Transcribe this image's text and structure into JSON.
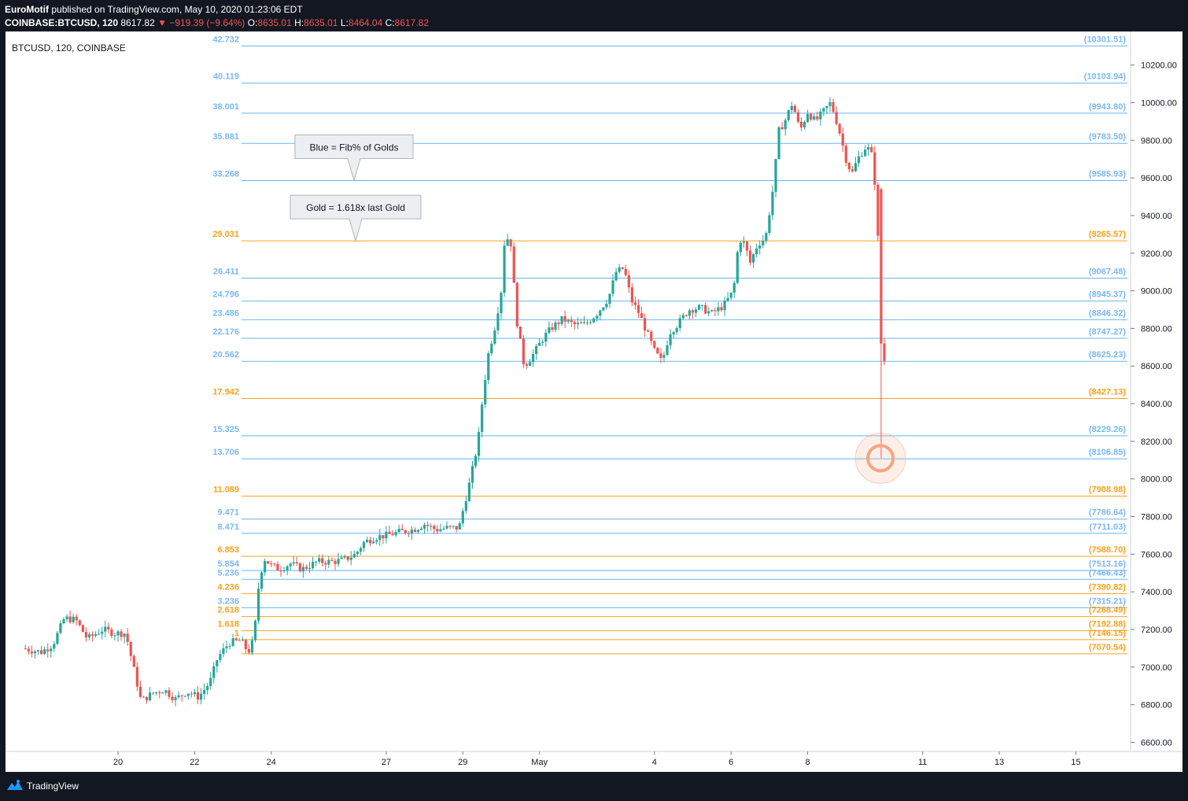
{
  "header": {
    "author": "EuroMotif",
    "published_text": "published on TradingView.com, May 10, 2020 01:23:06 EDT",
    "symbol": "COINBASE:BTCUSD, 120",
    "last_price": "8617.82",
    "change": "▼ −919.39 (−9.64%)",
    "o_label": "O:",
    "o_value": "8635.01",
    "h_label": "H:",
    "h_value": "8635.01",
    "l_label": "L:",
    "l_value": "8464.04",
    "c_label": "C:",
    "c_value": "8617.82"
  },
  "chart_label": "BTCUSD, 120, COINBASE",
  "footer": {
    "brand": "TradingView"
  },
  "colors": {
    "background": "#131722",
    "up": "#26a69a",
    "down": "#ef5350",
    "gold": "#f7a21b",
    "blue": "#64b5f6",
    "blue_text": "#7ab8f5",
    "circle": "#f4a582"
  },
  "chart_data": {
    "type": "candlestick",
    "y_axis": {
      "min": 6560,
      "max": 10370,
      "ticks": [
        6600,
        6800,
        7000,
        7200,
        7400,
        7600,
        7800,
        8000,
        8200,
        8400,
        8600,
        8800,
        9000,
        9200,
        9400,
        9600,
        9800,
        10000,
        10200
      ]
    },
    "x_axis": {
      "range_days": [
        17.5,
        16.3
      ],
      "ticks": [
        {
          "day": 20,
          "label": "20"
        },
        {
          "day": 22,
          "label": "22"
        },
        {
          "day": 24,
          "label": "24"
        },
        {
          "day": 27,
          "label": "27"
        },
        {
          "day": 29,
          "label": "29"
        },
        {
          "day": 31,
          "label": "May"
        },
        {
          "day": 34,
          "label": "4"
        },
        {
          "day": 36,
          "label": "6"
        },
        {
          "day": 38,
          "label": "8"
        },
        {
          "day": 41,
          "label": "11"
        },
        {
          "day": 43,
          "label": "13"
        },
        {
          "day": 45,
          "label": "15"
        }
      ]
    },
    "fib_levels": [
      {
        "ratio": "42.732",
        "price": "(10301.51)",
        "value": 10301.51,
        "color": "blue"
      },
      {
        "ratio": "40.119",
        "price": "(10103.94)",
        "value": 10103.94,
        "color": "blue"
      },
      {
        "ratio": "38.001",
        "price": "(9943.80)",
        "value": 9943.8,
        "color": "blue"
      },
      {
        "ratio": "35.881",
        "price": "(9783.50)",
        "value": 9783.5,
        "color": "blue"
      },
      {
        "ratio": "33.268",
        "price": "(9585.93)",
        "value": 9585.93,
        "color": "blue"
      },
      {
        "ratio": "29.031",
        "price": "(9265.57)",
        "value": 9265.57,
        "color": "gold"
      },
      {
        "ratio": "26.411",
        "price": "(9067.48)",
        "value": 9067.48,
        "color": "blue"
      },
      {
        "ratio": "24.796",
        "price": "(8945.37)",
        "value": 8945.37,
        "color": "blue"
      },
      {
        "ratio": "23.486",
        "price": "(8846.32)",
        "value": 8846.32,
        "color": "blue"
      },
      {
        "ratio": "22.176",
        "price": "(8747.27)",
        "value": 8747.27,
        "color": "blue"
      },
      {
        "ratio": "20.562",
        "price": "(8625.23)",
        "value": 8625.23,
        "color": "blue"
      },
      {
        "ratio": "17.942",
        "price": "(8427.13)",
        "value": 8427.13,
        "color": "gold"
      },
      {
        "ratio": "15.325",
        "price": "(8229.26)",
        "value": 8229.26,
        "color": "blue"
      },
      {
        "ratio": "13.706",
        "price": "(8106.85)",
        "value": 8106.85,
        "color": "blue"
      },
      {
        "ratio": "11.089",
        "price": "(7908.98)",
        "value": 7908.98,
        "color": "gold"
      },
      {
        "ratio": "9.471",
        "price": "(7786.64)",
        "value": 7786.64,
        "color": "blue"
      },
      {
        "ratio": "8.471",
        "price": "(7711.03)",
        "value": 7711.03,
        "color": "blue"
      },
      {
        "ratio": "6.853",
        "price": "(7588.70)",
        "value": 7588.7,
        "color": "gold"
      },
      {
        "ratio": "5.854",
        "price": "(7513.16)",
        "value": 7513.16,
        "color": "blue"
      },
      {
        "ratio": "5.236",
        "price": "(7466.43)",
        "value": 7466.43,
        "color": "blue"
      },
      {
        "ratio": "4.236",
        "price": "(7390.82)",
        "value": 7390.82,
        "color": "gold"
      },
      {
        "ratio": "3.236",
        "price": "(7315.21)",
        "value": 7315.21,
        "color": "blue"
      },
      {
        "ratio": "2.618",
        "price": "(7268.49)",
        "value": 7268.49,
        "color": "gold"
      },
      {
        "ratio": "1.618",
        "price": "(7192.88)",
        "value": 7192.88,
        "color": "gold"
      },
      {
        "ratio": "1",
        "price": "(7146.15)",
        "value": 7146.15,
        "color": "gold"
      },
      {
        "ratio": "",
        "price": "(7070.54)",
        "value": 7070.54,
        "color": "gold"
      }
    ],
    "callouts": [
      {
        "text": "Blue = Fib% of Golds",
        "pointer_value": 9585.93
      },
      {
        "text": "Gold = 1.618x last Gold",
        "pointer_value": 9265.57
      }
    ],
    "marker": {
      "day": 39.9,
      "value": 8110
    },
    "ohlc_anchors": [
      [
        17.5,
        7100
      ],
      [
        18.0,
        7080
      ],
      [
        18.3,
        7120
      ],
      [
        18.6,
        7260
      ],
      [
        18.9,
        7250
      ],
      [
        19.2,
        7150
      ],
      [
        19.6,
        7200
      ],
      [
        19.9,
        7180
      ],
      [
        20.2,
        7180
      ],
      [
        20.4,
        7000
      ],
      [
        20.6,
        6820
      ],
      [
        20.9,
        6860
      ],
      [
        21.2,
        6880
      ],
      [
        21.5,
        6830
      ],
      [
        21.8,
        6870
      ],
      [
        22.1,
        6840
      ],
      [
        22.4,
        6920
      ],
      [
        22.6,
        7050
      ],
      [
        22.9,
        7130
      ],
      [
        23.2,
        7140
      ],
      [
        23.4,
        7080
      ],
      [
        23.55,
        7150
      ],
      [
        23.65,
        7400
      ],
      [
        23.8,
        7580
      ],
      [
        24.0,
        7540
      ],
      [
        24.2,
        7520
      ],
      [
        24.5,
        7550
      ],
      [
        24.8,
        7520
      ],
      [
        25.2,
        7560
      ],
      [
        25.6,
        7560
      ],
      [
        25.9,
        7570
      ],
      [
        26.2,
        7600
      ],
      [
        26.4,
        7660
      ],
      [
        26.7,
        7690
      ],
      [
        27.0,
        7700
      ],
      [
        27.4,
        7720
      ],
      [
        27.7,
        7730
      ],
      [
        28.0,
        7760
      ],
      [
        28.3,
        7730
      ],
      [
        28.6,
        7740
      ],
      [
        28.9,
        7740
      ],
      [
        29.0,
        7830
      ],
      [
        29.2,
        8000
      ],
      [
        29.4,
        8200
      ],
      [
        29.5,
        8400
      ],
      [
        29.65,
        8650
      ],
      [
        29.85,
        8820
      ],
      [
        30.0,
        9000
      ],
      [
        30.1,
        9300
      ],
      [
        30.25,
        9250
      ],
      [
        30.4,
        8850
      ],
      [
        30.6,
        8600
      ],
      [
        30.8,
        8650
      ],
      [
        31.1,
        8750
      ],
      [
        31.3,
        8800
      ],
      [
        31.6,
        8850
      ],
      [
        31.9,
        8820
      ],
      [
        32.2,
        8820
      ],
      [
        32.5,
        8880
      ],
      [
        32.8,
        8960
      ],
      [
        33.0,
        9100
      ],
      [
        33.2,
        9120
      ],
      [
        33.4,
        8950
      ],
      [
        33.6,
        8880
      ],
      [
        33.8,
        8780
      ],
      [
        34.0,
        8680
      ],
      [
        34.2,
        8620
      ],
      [
        34.4,
        8780
      ],
      [
        34.6,
        8820
      ],
      [
        34.9,
        8900
      ],
      [
        35.2,
        8910
      ],
      [
        35.5,
        8880
      ],
      [
        35.8,
        8920
      ],
      [
        36.0,
        8980
      ],
      [
        36.1,
        9050
      ],
      [
        36.2,
        9280
      ],
      [
        36.35,
        9250
      ],
      [
        36.5,
        9150
      ],
      [
        36.7,
        9250
      ],
      [
        36.9,
        9280
      ],
      [
        37.1,
        9550
      ],
      [
        37.25,
        9850
      ],
      [
        37.4,
        9900
      ],
      [
        37.6,
        10000
      ],
      [
        37.8,
        9850
      ],
      [
        38.0,
        9950
      ],
      [
        38.2,
        9900
      ],
      [
        38.4,
        9950
      ],
      [
        38.6,
        10000
      ],
      [
        38.8,
        9870
      ],
      [
        39.0,
        9700
      ],
      [
        39.15,
        9620
      ],
      [
        39.3,
        9700
      ],
      [
        39.5,
        9760
      ],
      [
        39.65,
        9750
      ],
      [
        39.75,
        9580
      ],
      [
        39.8,
        9570
      ],
      [
        39.9,
        8700
      ],
      [
        40.0,
        8630
      ],
      [
        40.05,
        8618
      ]
    ]
  }
}
